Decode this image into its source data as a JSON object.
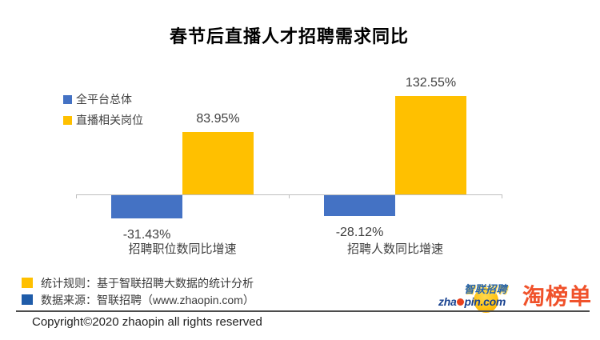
{
  "title": "春节后直播人才招聘需求同比",
  "chart_data": {
    "type": "bar",
    "categories": [
      "招聘职位数同比增速",
      "招聘人数同比增速"
    ],
    "series": [
      {
        "id": "all-platform-overall",
        "name": "全平台总体",
        "color": "#4472C4",
        "values": [
          -31.43,
          -28.12
        ],
        "labels": [
          "-31.43%",
          "-28.12%"
        ]
      },
      {
        "id": "livestream-related-jobs",
        "name": "直播相关岗位",
        "color": "#FFC000",
        "values": [
          83.95,
          132.55
        ],
        "labels": [
          "83.95%",
          "132.55%"
        ]
      }
    ],
    "ylim": [
      -40,
      145
    ],
    "grid": false,
    "legend_position": "top-left",
    "axis_color": "#BFBFBF",
    "value_label_format": "percent"
  },
  "legend": {
    "items": [
      {
        "label": "全平台总体",
        "color": "#4472C4"
      },
      {
        "label": "直播相关岗位",
        "color": "#FFC000"
      }
    ]
  },
  "footer": {
    "notes": [
      {
        "label": "统计规则：基于智联招聘大数据的统计分析",
        "color": "#FFC000"
      },
      {
        "label": "数据来源：智联招聘（www.zhaopin.com）",
        "color": "#1F5CA9"
      }
    ],
    "copyright": "Copyright©2020 zhaopin all rights reserved"
  },
  "logos": {
    "zhaopin": {
      "brand_cn": "智联招聘",
      "domain_pre": "zha",
      "domain_post": "pin.com"
    },
    "taobangdan": "淘榜单"
  },
  "colors": {
    "background": "#FFFFFF",
    "bar_blue": "#4472C4",
    "bar_yellow": "#FFC000",
    "axis": "#BFBFBF",
    "text_dark": "#3F3F3F",
    "footer_rule": "#4D4D4D",
    "taobangdan_orange": "#F0522B",
    "zhaopin_blue": "#17418F"
  }
}
